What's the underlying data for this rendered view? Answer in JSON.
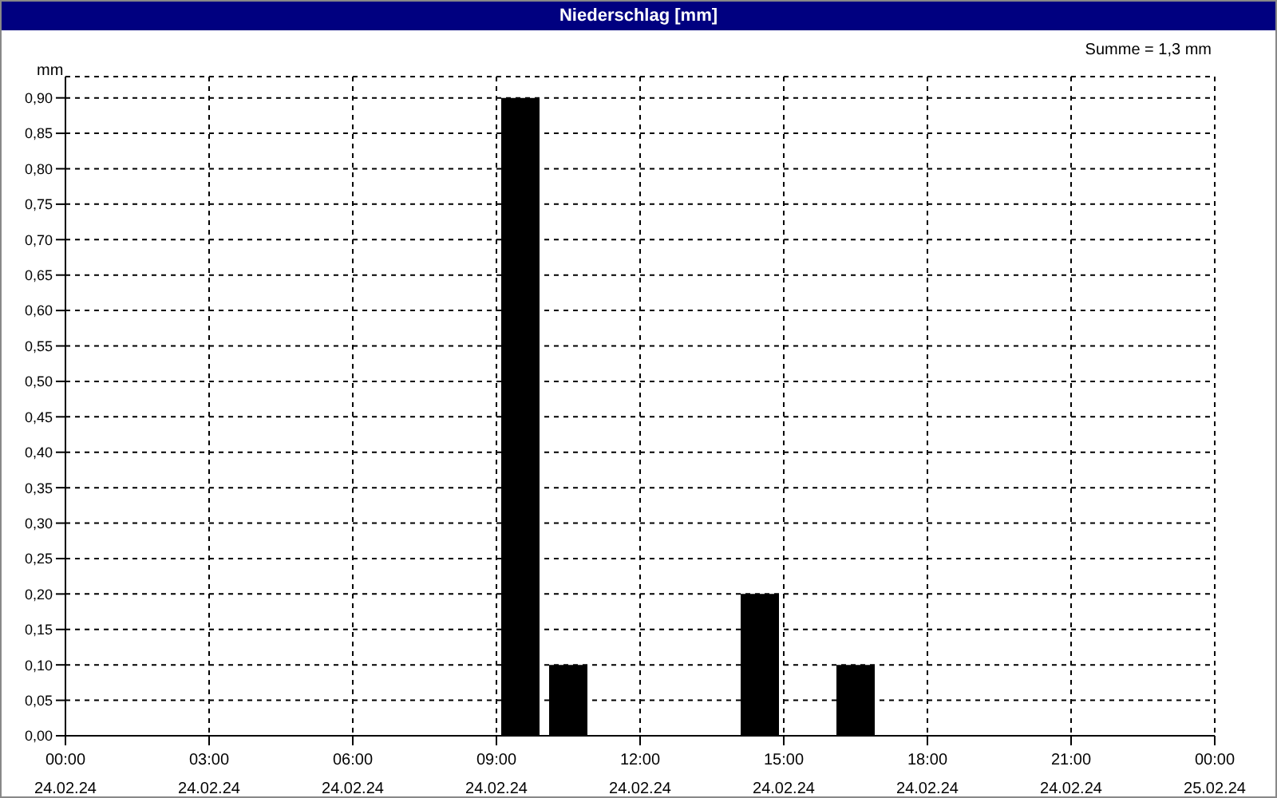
{
  "chart_data": {
    "type": "bar",
    "title": "Niederschlag [mm]",
    "ylabel": "mm",
    "annotations": [
      "Summe = 1,3 mm"
    ],
    "x": [
      "--02-24T09:30",
      "--02-24T10:30",
      "--02-24T14:30",
      "--02-24T16:30"
    ],
    "values": [
      0.9,
      0.1,
      0.2,
      0.1
    ],
    "color": "#000000",
    "xlim": [
      "--02-24T00:00",
      "--02-25T00:00"
    ],
    "xticks": [
      {
        "value": "--02-24T00:00",
        "label": "00:00 24.02.24"
      },
      {
        "value": "--02-24T03:00",
        "label": "03:00 24.02.24"
      },
      {
        "value": "--02-24T06:00",
        "label": "06:00 24.02.24"
      },
      {
        "value": "--02-24T09:00",
        "label": "09:00 24.02.24"
      },
      {
        "value": "--02-24T12:00",
        "label": "12:00 24.02.24"
      },
      {
        "value": "--02-24T15:00",
        "label": "15:00 24.02.24"
      },
      {
        "value": "--02-24T18:00",
        "label": "18:00 24.02.24"
      },
      {
        "value": "--02-24T21:00",
        "label": "21:00 24.02.24"
      },
      {
        "value": "--02-25T00:00",
        "label": "00:00 25.02.24"
      }
    ],
    "ylim": [
      0,
      0.93
    ],
    "yticks": [
      {
        "value": 0,
        "label": "0,00"
      },
      {
        "value": 0.05,
        "label": "0,05"
      },
      {
        "value": 0.1,
        "label": "0,10"
      },
      {
        "value": 0.15,
        "label": "0,15"
      },
      {
        "value": 0.2,
        "label": "0,20"
      },
      {
        "value": 0.25,
        "label": "0,25"
      },
      {
        "value": 0.3,
        "label": "0,30"
      },
      {
        "value": 0.35,
        "label": "0,35"
      },
      {
        "value": 0.4,
        "label": "0,40"
      },
      {
        "value": 0.45,
        "label": "0,45"
      },
      {
        "value": 0.5,
        "label": "0,50"
      },
      {
        "value": 0.55,
        "label": "0,55"
      },
      {
        "value": 0.6,
        "label": "0,60"
      },
      {
        "value": 0.65,
        "label": "0,65"
      },
      {
        "value": 0.7,
        "label": "0,70"
      },
      {
        "value": 0.75,
        "label": "0,75"
      },
      {
        "value": 0.8,
        "label": "0,80"
      },
      {
        "value": 0.85,
        "label": "0,85"
      },
      {
        "value": 0.9,
        "label": "0,90"
      }
    ],
    "grid": true,
    "legend": false
  }
}
